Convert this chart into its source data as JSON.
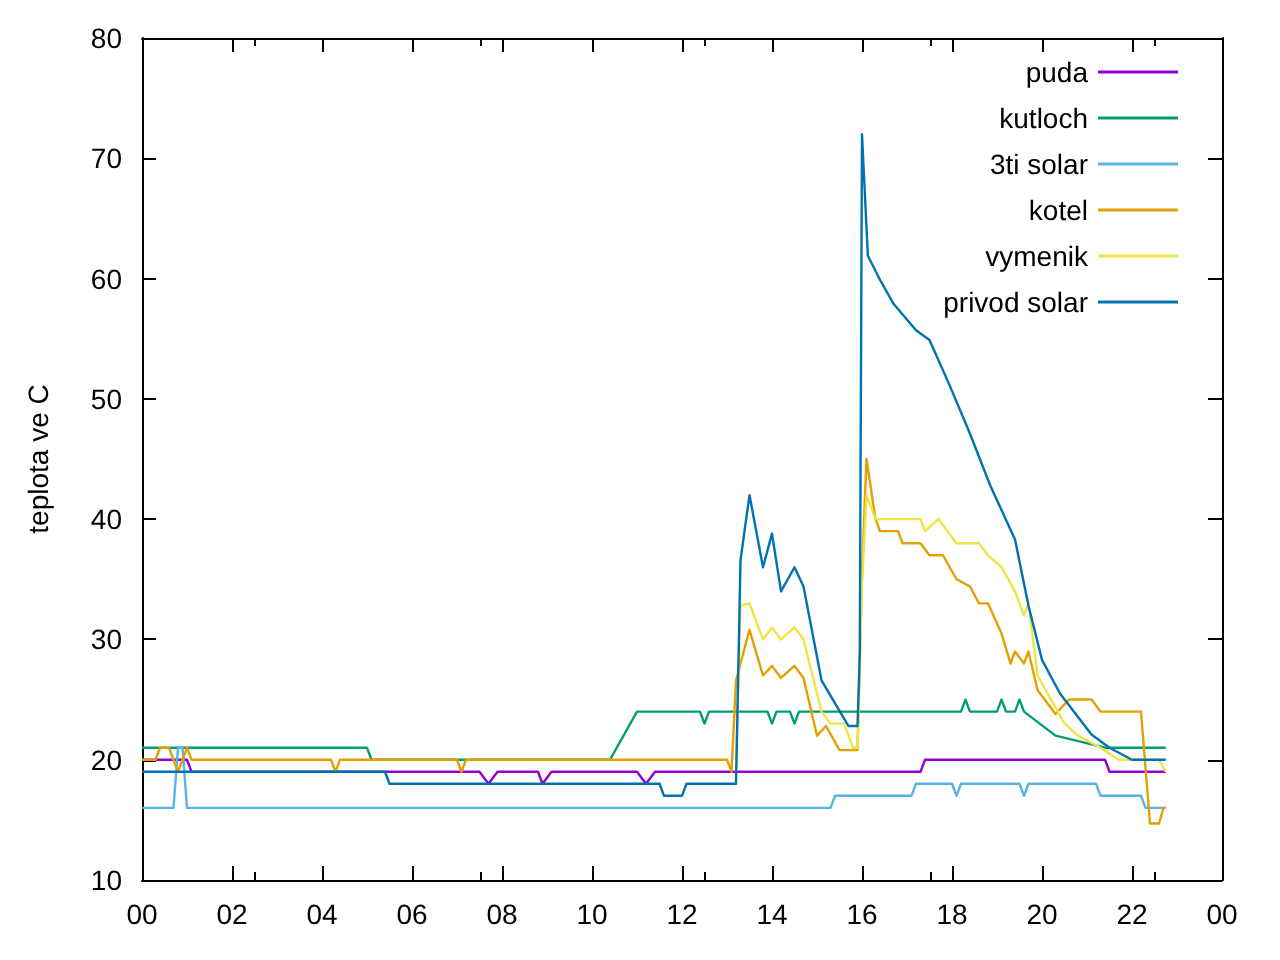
{
  "chart_data": {
    "type": "line",
    "ylabel": "teplota ve C",
    "xlim": [
      0,
      24
    ],
    "ylim": [
      10,
      80
    ],
    "xticks": [
      {
        "value": 0,
        "label": "00"
      },
      {
        "value": 2,
        "label": "02"
      },
      {
        "value": 4,
        "label": "04"
      },
      {
        "value": 6,
        "label": "06"
      },
      {
        "value": 8,
        "label": "08"
      },
      {
        "value": 10,
        "label": "10"
      },
      {
        "value": 12,
        "label": "12"
      },
      {
        "value": 14,
        "label": "14"
      },
      {
        "value": 16,
        "label": "16"
      },
      {
        "value": 18,
        "label": "18"
      },
      {
        "value": 20,
        "label": "20"
      },
      {
        "value": 22,
        "label": "22"
      },
      {
        "value": 24,
        "label": "00"
      }
    ],
    "yticks": [
      10,
      20,
      30,
      40,
      50,
      60,
      70,
      80
    ],
    "grid": false,
    "legend": "top right",
    "marker": "none",
    "line_style": "solid",
    "series": [
      {
        "name": "puda",
        "color": "#9400d3",
        "x": [
          0,
          1.0,
          1.1,
          7.5,
          7.7,
          7.9,
          8.8,
          8.9,
          9.1,
          11.0,
          11.2,
          11.4,
          17.3,
          17.4,
          21.4,
          21.5,
          22.75
        ],
        "values": [
          20,
          20,
          19,
          19,
          18,
          19,
          19,
          18,
          19,
          19,
          18,
          19,
          19,
          20,
          20,
          19,
          19
        ]
      },
      {
        "name": "kutloch",
        "color": "#009e73",
        "x": [
          0,
          5.0,
          5.1,
          10.4,
          11.0,
          12.4,
          12.5,
          12.6,
          13.9,
          14.0,
          14.1,
          14.4,
          14.5,
          14.6,
          18.2,
          18.3,
          18.4,
          19.0,
          19.1,
          19.2,
          19.4,
          19.5,
          19.6,
          20.3,
          21.4,
          22.75
        ],
        "values": [
          21,
          21,
          20,
          20,
          24,
          24,
          23,
          24,
          24,
          23,
          24,
          24,
          23,
          24,
          24,
          25,
          24,
          24,
          25,
          24,
          24,
          25,
          24,
          22,
          21,
          21
        ]
      },
      {
        "name": "3ti solar",
        "color": "#56b4e9",
        "x": [
          0,
          0.7,
          0.8,
          0.9,
          1.0,
          15.3,
          15.4,
          17.1,
          17.2,
          18.0,
          18.1,
          18.2,
          19.5,
          19.6,
          19.7,
          21.2,
          21.3,
          22.2,
          22.3,
          22.75
        ],
        "values": [
          16,
          16,
          21,
          21,
          16,
          16,
          17,
          17,
          18,
          18,
          17,
          18,
          18,
          17,
          18,
          18,
          17,
          17,
          16,
          16
        ]
      },
      {
        "name": "kotel",
        "color": "#e69f00",
        "x": [
          0,
          0.3,
          0.4,
          0.6,
          0.8,
          0.9,
          1.0,
          1.1,
          4.2,
          4.3,
          4.4,
          7.0,
          7.1,
          7.2,
          11.5,
          11.7,
          13.0,
          13.1,
          13.2,
          13.5,
          13.8,
          14.0,
          14.2,
          14.5,
          14.7,
          15.0,
          15.2,
          15.5,
          15.9,
          16.0,
          16.1,
          16.3,
          16.4,
          16.8,
          16.9,
          17.3,
          17.5,
          17.8,
          18.1,
          18.4,
          18.6,
          18.8,
          19.1,
          19.3,
          19.4,
          19.6,
          19.7,
          19.9,
          20.3,
          20.6,
          21.1,
          21.3,
          22.2,
          22.4,
          22.6,
          22.7,
          22.75
        ],
        "values": [
          20,
          20,
          21,
          21,
          19,
          20,
          21,
          20,
          20,
          19,
          20,
          20,
          19,
          20,
          20,
          20,
          20,
          19,
          26.6,
          30.8,
          27,
          27.8,
          26.8,
          27.8,
          26.8,
          22,
          22.8,
          20.8,
          20.8,
          35.4,
          45,
          40,
          39,
          39,
          38,
          38,
          37,
          37,
          35,
          34.4,
          33,
          33,
          30.5,
          28,
          29,
          28,
          29,
          25.8,
          23.8,
          25,
          25,
          24,
          24,
          14.7,
          14.7,
          16,
          16
        ]
      },
      {
        "name": "vymenik",
        "color": "#f0e442",
        "x": [
          13.2,
          13.3,
          13.5,
          13.8,
          14.0,
          14.2,
          14.5,
          14.7,
          15.1,
          15.3,
          15.6,
          15.8,
          15.9,
          16.0,
          16.1,
          16.3,
          17.3,
          17.4,
          17.7,
          18.1,
          18.6,
          18.8,
          19.1,
          19.4,
          19.6,
          19.7,
          19.9,
          20.5,
          20.8,
          21.3,
          21.7,
          22.6,
          22.75
        ],
        "values": [
          19,
          32.8,
          33,
          30,
          31,
          30,
          31,
          30,
          24,
          23,
          23,
          21,
          21,
          34.6,
          42,
          40,
          40,
          39,
          40,
          38,
          38,
          37,
          36,
          34,
          32,
          33,
          27,
          23,
          22,
          21,
          20,
          20,
          19
        ]
      },
      {
        "name": "privod solar",
        "color": "#0072b2",
        "x": [
          0,
          5.4,
          5.5,
          11.5,
          11.6,
          12.0,
          12.1,
          13.2,
          13.3,
          13.5,
          13.8,
          14.0,
          14.2,
          14.5,
          14.7,
          15.1,
          15.7,
          15.9,
          15.95,
          16.0,
          16.13,
          16.4,
          16.7,
          17.2,
          17.5,
          17.95,
          18.4,
          18.85,
          19.4,
          19.7,
          20.0,
          20.4,
          21.1,
          21.5,
          22.0,
          22.75
        ],
        "values": [
          19,
          19,
          18,
          18,
          17,
          17,
          18,
          18,
          36.6,
          42,
          36,
          38.8,
          34,
          36,
          34.4,
          26.6,
          22.8,
          22.8,
          28.8,
          72,
          61.9,
          59.9,
          57.9,
          55.7,
          54.9,
          51.1,
          47.1,
          42.8,
          38.3,
          32.8,
          28.3,
          25.5,
          22.1,
          21,
          20,
          20
        ]
      }
    ]
  }
}
